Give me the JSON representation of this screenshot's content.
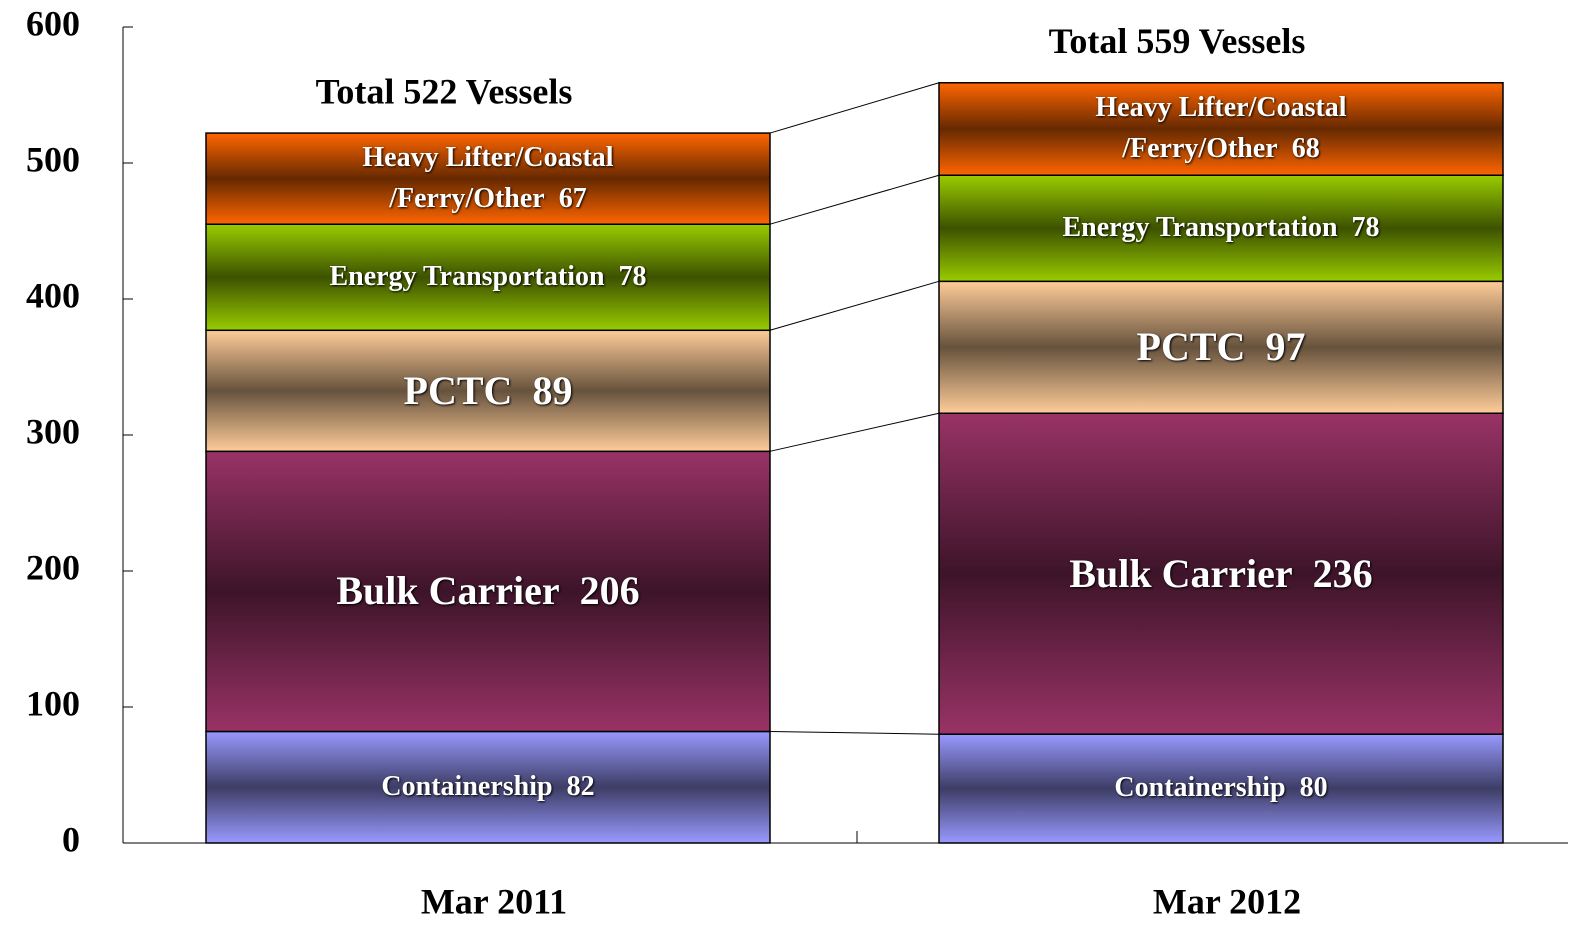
{
  "chart_data": {
    "type": "stacked_bar",
    "categories": [
      "Mar 2011",
      "Mar 2012"
    ],
    "series": [
      {
        "name": "Containership",
        "color": "#9999ff",
        "values": [
          82,
          80
        ]
      },
      {
        "name": "Bulk Carrier",
        "color": "#993366",
        "values": [
          206,
          236
        ]
      },
      {
        "name": "PCTC",
        "color": "#ffcc99",
        "values": [
          89,
          97
        ]
      },
      {
        "name": "Energy Transportation",
        "color": "#99cc00",
        "values": [
          78,
          78
        ]
      },
      {
        "name": "Heavy Lifter/Coastal /Ferry/Other",
        "color": "#ff6600",
        "values": [
          67,
          68
        ]
      }
    ],
    "annotations": [
      "Total 522 Vessels",
      "Total 559 Vessels"
    ],
    "ylim": [
      0,
      600
    ],
    "yticks": [
      0,
      100,
      200,
      300,
      400,
      500,
      600
    ],
    "grid": false
  }
}
